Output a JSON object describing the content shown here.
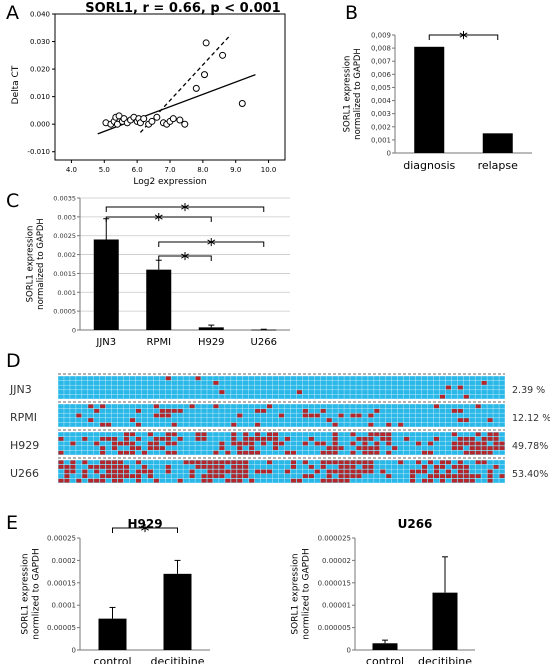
{
  "panels": {
    "a": {
      "letter": "A"
    },
    "b": {
      "letter": "B"
    },
    "c": {
      "letter": "C"
    },
    "d": {
      "letter": "D"
    },
    "e": {
      "letter": "E"
    }
  },
  "chart_data": [
    {
      "id": "A",
      "type": "scatter",
      "title": "SORL1, r = 0.66, p < 0.001",
      "xlabel": "Log2 expression",
      "ylabel": "Delta CT",
      "xlim": [
        3.5,
        10.5
      ],
      "ylim": [
        -0.013,
        0.04
      ],
      "xticks": [
        "4.0",
        "5.0",
        "6.0",
        "7.0",
        "8.0",
        "9.0",
        "10.0"
      ],
      "yticks": [
        "-0.010",
        "0.000",
        "0.010",
        "0.020",
        "0.030",
        "0.040"
      ],
      "x": [
        5.05,
        5.2,
        5.3,
        5.35,
        5.4,
        5.45,
        5.55,
        5.6,
        5.7,
        5.8,
        5.9,
        6.0,
        6.05,
        6.1,
        6.2,
        6.35,
        6.45,
        6.6,
        6.8,
        6.9,
        7.0,
        7.1,
        7.3,
        7.45,
        7.8,
        8.05,
        8.1,
        8.6,
        9.2
      ],
      "y": [
        0.0005,
        0.0,
        0.001,
        0.0025,
        0.0,
        0.003,
        0.001,
        0.002,
        0.0005,
        0.0015,
        0.0025,
        0.001,
        0.002,
        0.0005,
        0.002,
        0.0,
        0.001,
        0.0025,
        0.0005,
        0.0,
        0.001,
        0.002,
        0.0015,
        0.0,
        0.013,
        0.018,
        0.0295,
        0.025,
        0.0075
      ],
      "lines": [
        {
          "style": "solid",
          "x": [
            4.8,
            9.6
          ],
          "y": [
            -0.0035,
            0.018
          ]
        },
        {
          "style": "dashed",
          "x": [
            6.1,
            8.85
          ],
          "y": [
            -0.003,
            0.0325
          ]
        }
      ]
    },
    {
      "id": "B",
      "type": "bar",
      "categories": [
        "diagnosis",
        "relapse"
      ],
      "values": [
        0.0081,
        0.0015
      ],
      "ylabel": "SORL1 expression normalized to GAPDH",
      "ylabel_lines": [
        "SORL1 expression",
        "normalized to GAPDH"
      ],
      "ylim": [
        0,
        0.009
      ],
      "yticks": [
        "0",
        "0,001",
        "0,002",
        "0,003",
        "0,004",
        "0,005",
        "0,006",
        "0,007",
        "0,008",
        "0,009"
      ],
      "significance": [
        {
          "from": 0,
          "to": 1,
          "label": "*"
        }
      ]
    },
    {
      "id": "C",
      "type": "bar",
      "categories": [
        "JJN3",
        "RPMI",
        "H929",
        "U266"
      ],
      "values": [
        0.0024,
        0.0016,
        7e-05,
        1e-05
      ],
      "errors": [
        0.00055,
        0.00025,
        6e-05,
        1e-05
      ],
      "ylabel": "SORL1 expression normalized to GAPDH",
      "ylabel_lines": [
        "SORL1 expression",
        "normalized to GAPDH"
      ],
      "ylim": [
        0,
        0.0035
      ],
      "yticks": [
        "0",
        "0.0005",
        "0.001",
        "0.0015",
        "0.002",
        "0.0025",
        "0.003",
        "0.0035"
      ],
      "grid": true,
      "significance": [
        {
          "from": 0,
          "to": 3,
          "label": "*"
        },
        {
          "from": 0,
          "to": 2,
          "label": "*"
        },
        {
          "from": 1,
          "to": 3,
          "label": "*"
        },
        {
          "from": 1,
          "to": 2,
          "label": "*"
        }
      ]
    },
    {
      "id": "D",
      "type": "heatmap",
      "colors": {
        "methylated": "#b4262a",
        "unmethylated": "#2ab8e8",
        "missing": "#e8e8e8"
      },
      "rows": [
        {
          "label": "JJN3",
          "percent": "2.39 %",
          "fraction": 0.0239
        },
        {
          "label": "RPMI",
          "percent": "12.12 %",
          "fraction": 0.1212
        },
        {
          "label": "H929",
          "percent": "49.78%",
          "fraction": 0.4978
        },
        {
          "label": "U266",
          "percent": "53.40%",
          "fraction": 0.534
        }
      ]
    },
    {
      "id": "E1",
      "type": "bar",
      "title": "H929",
      "categories": [
        "control",
        "decitibine"
      ],
      "values": [
        7e-05,
        0.00017
      ],
      "errors": [
        2.5e-05,
        3e-05
      ],
      "ylabel": "SORL1 expression normlized to GAPDH",
      "ylabel_lines": [
        "SORL1 expression",
        "normlized to GAPDH"
      ],
      "ylim": [
        0,
        0.00025
      ],
      "yticks": [
        "0",
        "0.00005",
        "0.0001",
        "0.00015",
        "0.0002",
        "0.00025"
      ],
      "significance": [
        {
          "from": 0,
          "to": 1,
          "label": "*"
        }
      ]
    },
    {
      "id": "E2",
      "type": "bar",
      "title": "U266",
      "categories": [
        "control",
        "decitibine"
      ],
      "values": [
        1.5e-06,
        1.28e-05
      ],
      "errors": [
        7e-07,
        8e-06
      ],
      "ylabel": "SORL1 expression normlized to GAPDH",
      "ylabel_lines": [
        "SORL1 expression",
        "normlized to GAPDH"
      ],
      "ylim": [
        0,
        2.5e-05
      ],
      "yticks": [
        "0",
        "0.000005",
        "0.00001",
        "0.000015",
        "0.00002",
        "0.000025"
      ]
    }
  ]
}
